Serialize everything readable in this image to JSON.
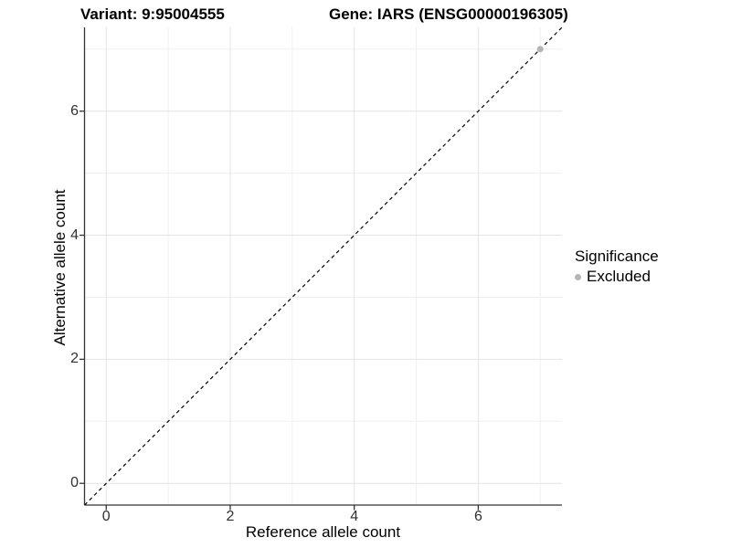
{
  "titles": {
    "left": "Variant: 9:95004555",
    "right": "Gene: IARS (ENSG00000196305)"
  },
  "legend": {
    "title": "Significance",
    "items": [
      {
        "label": "Excluded",
        "color": "#b5b5b5"
      }
    ]
  },
  "colors": {
    "major_grid": "#e3e3e3",
    "minor_grid": "#f0f0f0",
    "axis_line": "#333333",
    "tick_mark": "#333333",
    "reference_line": "#000000",
    "point": "#b5b5b5"
  },
  "chart_data": {
    "type": "scatter",
    "titles": [
      "Variant: 9:95004555",
      "Gene: IARS (ENSG00000196305)"
    ],
    "xlabel": "Reference allele count",
    "ylabel": "Alternative allele count",
    "xlim": [
      -0.35,
      7.35
    ],
    "ylim": [
      -0.35,
      7.35
    ],
    "x_major_ticks": [
      0,
      2,
      4,
      6
    ],
    "y_major_ticks": [
      0,
      2,
      4,
      6
    ],
    "x_minor_gridlines": [
      1,
      3,
      5,
      7
    ],
    "y_minor_gridlines": [
      1,
      3,
      5,
      7
    ],
    "grid": true,
    "legend_position": "right",
    "reference_line": {
      "type": "identity",
      "slope": 1,
      "intercept": 0,
      "style": "dashed",
      "color": "#000000"
    },
    "series": [
      {
        "name": "Excluded",
        "color": "#b5b5b5",
        "points": [
          {
            "x": 7,
            "y": 7
          }
        ]
      }
    ]
  }
}
